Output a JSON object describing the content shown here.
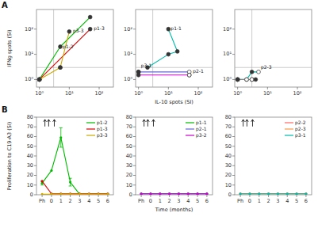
{
  "chart_data": [
    {
      "type": "line",
      "title": "A",
      "ylabel": "IFNg spots (SI)",
      "log": true,
      "grid": false,
      "xlim": [
        0.8,
        300
      ],
      "ylim": [
        0.5,
        600
      ],
      "xticks": [
        {
          "value": 1,
          "label": "10⁰"
        },
        {
          "value": 10,
          "label": "10¹"
        },
        {
          "value": 100,
          "label": "10²"
        }
      ],
      "yticks": [
        {
          "value": 1,
          "label": "10⁰"
        },
        {
          "value": 10,
          "label": "10¹"
        },
        {
          "value": 100,
          "label": "10²"
        }
      ],
      "hline": 3,
      "vline": 3,
      "series": [
        {
          "color": "#00bb00",
          "x": [
            1,
            1,
            5,
            50
          ],
          "values": [
            1,
            1,
            20,
            300
          ],
          "open": [
            true,
            false,
            false,
            false
          ]
        },
        {
          "color": "#dd0000",
          "x": [
            1,
            50
          ],
          "values": [
            1,
            100
          ],
          "open": [
            true,
            false
          ]
        },
        {
          "color": "#ccaa00",
          "x": [
            1,
            1,
            5,
            5,
            10
          ],
          "values": [
            1,
            1,
            3,
            3,
            80
          ],
          "open": [
            true,
            false,
            true,
            false,
            false
          ]
        }
      ],
      "annotations": [
        {
          "text": "p1-2",
          "x": 5,
          "y": 20
        },
        {
          "text": "p1-3",
          "x": 55,
          "y": 100
        },
        {
          "text": "p3-3",
          "x": 11,
          "y": 80
        }
      ]
    },
    {
      "type": "line",
      "xlabel": "IL-10 spots (SI)",
      "log": true,
      "grid": false,
      "xlim": [
        0.8,
        300
      ],
      "ylim": [
        0.5,
        600
      ],
      "xticks": [
        {
          "value": 1,
          "label": "10⁰"
        },
        {
          "value": 10,
          "label": "10¹"
        },
        {
          "value": 100,
          "label": "10²"
        }
      ],
      "yticks": [
        {
          "value": 1,
          "label": "10⁰"
        },
        {
          "value": 10,
          "label": "10¹"
        },
        {
          "value": 100,
          "label": "10²"
        }
      ],
      "hline": 3,
      "vline": 3,
      "series": [
        {
          "color": "#00bbaa",
          "x": [
            10,
            20,
            10,
            2
          ],
          "values": [
            100,
            13,
            10,
            3
          ],
          "open": [
            false,
            false,
            false,
            false
          ]
        },
        {
          "color": "#6666dd",
          "x": [
            1,
            50,
            50
          ],
          "values": [
            2,
            2,
            1.5
          ],
          "open": [
            false,
            true,
            false
          ]
        },
        {
          "color": "#cc00cc",
          "x": [
            1,
            1,
            50
          ],
          "values": [
            2,
            1.5,
            1.5
          ],
          "open": [
            false,
            false,
            true
          ]
        }
      ],
      "annotations": [
        {
          "text": "p1-1",
          "x": 10,
          "y": 100
        },
        {
          "text": "p2-1",
          "x": 55,
          "y": 2
        },
        {
          "text": "p3-1",
          "x": 1,
          "y": 3.5
        }
      ]
    },
    {
      "type": "line",
      "log": true,
      "grid": false,
      "xlim": [
        0.8,
        300
      ],
      "ylim": [
        0.5,
        600
      ],
      "xticks": [
        {
          "value": 1,
          "label": "10⁰"
        },
        {
          "value": 10,
          "label": "10¹"
        },
        {
          "value": 100,
          "label": "10²"
        }
      ],
      "yticks": [
        {
          "value": 1,
          "label": "10⁰"
        },
        {
          "value": 10,
          "label": "10¹"
        },
        {
          "value": 100,
          "label": "10²"
        }
      ],
      "hline": 3,
      "vline": 3,
      "series": [
        {
          "color": "#00bbaa",
          "x": [
            1,
            2,
            3,
            5
          ],
          "values": [
            1,
            1,
            2,
            2
          ],
          "open": [
            false,
            false,
            false,
            true
          ]
        },
        {
          "color": "#888888",
          "x": [
            1,
            1,
            2,
            3,
            3,
            4
          ],
          "values": [
            1,
            1,
            1,
            1,
            1,
            1
          ],
          "open": [
            true,
            false,
            true,
            false,
            true,
            false
          ]
        }
      ],
      "annotations": [
        {
          "text": "p2-3",
          "x": 5,
          "y": 3
        }
      ]
    },
    {
      "type": "line",
      "title": "B",
      "ylabel": "Proliferation to C19-A3 (SI)",
      "grid": false,
      "legend": "upper right",
      "xlim": [
        -1.6,
        6.6
      ],
      "ylim": [
        0,
        80
      ],
      "xticks": [
        {
          "value": -1,
          "label": "Ph"
        },
        0,
        1,
        2,
        3,
        4,
        5,
        6
      ],
      "yticks": [
        0,
        10,
        20,
        30,
        40,
        50,
        60,
        70,
        80
      ],
      "arrows": [
        -0.7,
        -0.3,
        0.3
      ],
      "series": [
        {
          "name": "p1-2",
          "color": "#00bb00",
          "x": [
            -1,
            0,
            1,
            2,
            3,
            6
          ],
          "values": [
            12,
            25,
            59,
            13,
            0.5,
            0.5
          ],
          "error": [
            2,
            0,
            10,
            4,
            0,
            0
          ]
        },
        {
          "name": "p1-3",
          "color": "#dd0000",
          "x": [
            -1,
            0,
            1,
            2,
            3,
            4,
            5,
            6
          ],
          "values": [
            14,
            1,
            1,
            1,
            1,
            1,
            1,
            1
          ],
          "error": [
            0,
            0,
            0,
            0,
            0,
            0,
            0,
            0
          ]
        },
        {
          "name": "p3-3",
          "color": "#ccaa00",
          "x": [
            -1,
            0,
            1,
            2,
            3,
            4,
            5,
            6
          ],
          "values": [
            0.5,
            0.5,
            0.5,
            0.5,
            0.5,
            0.5,
            0.5,
            0.5
          ],
          "error": [
            0,
            0,
            0,
            0,
            0,
            0,
            0,
            0
          ]
        }
      ]
    },
    {
      "type": "line",
      "xlabel": "Time (months)",
      "grid": false,
      "legend": "upper right",
      "xlim": [
        -1.6,
        6.6
      ],
      "ylim": [
        0,
        80
      ],
      "xticks": [
        {
          "value": -1,
          "label": "Ph"
        },
        0,
        1,
        2,
        3,
        4,
        5,
        6
      ],
      "yticks": [
        0,
        10,
        20,
        30,
        40,
        50,
        60,
        70,
        80
      ],
      "arrows": [
        -0.7,
        -0.3,
        0.3
      ],
      "series": [
        {
          "name": "p1-1",
          "color": "#00bb00",
          "x": [
            -1,
            0,
            1,
            2,
            3,
            4,
            5,
            6
          ],
          "values": [
            1,
            1,
            1,
            1,
            1,
            1,
            1,
            1
          ],
          "error": [
            0,
            0,
            0,
            0,
            0,
            0,
            0,
            0
          ]
        },
        {
          "name": "p2-1",
          "color": "#6666dd",
          "x": [
            -1,
            0,
            1,
            2,
            3,
            4,
            5,
            6
          ],
          "values": [
            1,
            1,
            1,
            1,
            1,
            1,
            1,
            1
          ],
          "error": [
            0,
            0,
            0,
            0,
            0,
            0,
            0,
            0
          ]
        },
        {
          "name": "p3-2",
          "color": "#cc00cc",
          "x": [
            -1,
            0,
            1,
            2,
            3,
            4,
            5,
            6
          ],
          "values": [
            1,
            1,
            1,
            1,
            1,
            1,
            1,
            1
          ],
          "error": [
            0,
            0,
            0,
            0,
            0,
            0,
            0,
            0
          ]
        }
      ]
    },
    {
      "type": "line",
      "grid": false,
      "legend": "upper right",
      "xlim": [
        -1.6,
        6.6
      ],
      "ylim": [
        0,
        80
      ],
      "xticks": [
        {
          "value": -1,
          "label": "Ph"
        },
        0,
        1,
        2,
        3,
        4,
        5,
        6
      ],
      "yticks": [
        0,
        10,
        20,
        30,
        40,
        50,
        60,
        70,
        80
      ],
      "arrows": [
        -0.7,
        -0.3,
        0.3
      ],
      "series": [
        {
          "name": "p2-2",
          "color": "#ff6666",
          "x": [
            -1,
            0,
            1,
            2,
            3,
            4,
            5,
            6
          ],
          "values": [
            1,
            1,
            1,
            1,
            1,
            1,
            1,
            1
          ],
          "error": [
            0,
            0,
            0,
            0,
            0,
            0,
            0,
            0
          ]
        },
        {
          "name": "p2-3",
          "color": "#ff9944",
          "x": [
            -1,
            0,
            1,
            2,
            3,
            4,
            5,
            6
          ],
          "values": [
            1,
            1,
            1,
            1,
            1,
            1,
            1,
            1
          ],
          "error": [
            0,
            0,
            0,
            0,
            0,
            0,
            0,
            0
          ]
        },
        {
          "name": "p3-1",
          "color": "#00bbaa",
          "x": [
            -1,
            0,
            1,
            2,
            3,
            4,
            5,
            6
          ],
          "values": [
            1,
            1,
            1,
            1,
            1,
            1,
            1,
            1
          ],
          "error": [
            0,
            0,
            0,
            0,
            0,
            0,
            0,
            0
          ]
        }
      ]
    }
  ]
}
